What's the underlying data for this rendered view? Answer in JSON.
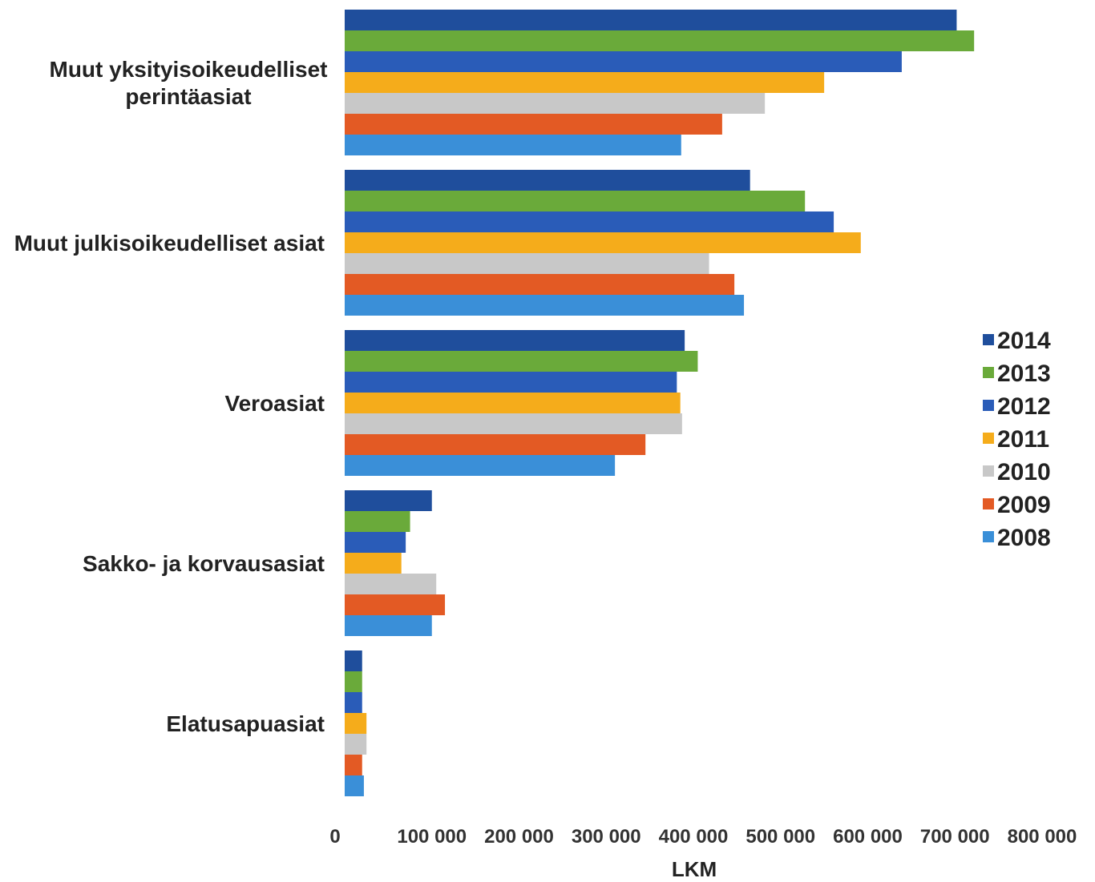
{
  "chart_data": {
    "type": "bar",
    "orientation": "horizontal",
    "categories": [
      [
        "Muut yksityisoikeudelliset",
        "perintäasiat"
      ],
      [
        "Muut julkisoikeudelliset asiat"
      ],
      [
        "Veroasiat"
      ],
      [
        "Sakko- ja korvausasiat"
      ],
      [
        "Elatusapuasiat"
      ]
    ],
    "series": [
      {
        "name": "2014",
        "color": "#1f4e9c",
        "values": [
          702000,
          465000,
          390000,
          100000,
          20000
        ]
      },
      {
        "name": "2013",
        "color": "#6aaa3a",
        "values": [
          722000,
          528000,
          405000,
          75000,
          20000
        ]
      },
      {
        "name": "2012",
        "color": "#2a5cb8",
        "values": [
          639000,
          561000,
          381000,
          70000,
          20000
        ]
      },
      {
        "name": "2011",
        "color": "#f5ac1b",
        "values": [
          550000,
          592000,
          385000,
          65000,
          25000
        ]
      },
      {
        "name": "2010",
        "color": "#c8c8c8",
        "values": [
          482000,
          418000,
          387000,
          105000,
          25000
        ]
      },
      {
        "name": "2009",
        "color": "#e35a24",
        "values": [
          433000,
          447000,
          345000,
          115000,
          20000
        ]
      },
      {
        "name": "2008",
        "color": "#3a8fd8",
        "values": [
          386000,
          458000,
          310000,
          100000,
          22000
        ]
      }
    ],
    "xlabel": "LKM",
    "xlim": [
      0,
      800000
    ],
    "xticks": [
      {
        "value": 0,
        "label": "0"
      },
      {
        "value": 100000,
        "label": "100 000"
      },
      {
        "value": 200000,
        "label": "200 000"
      },
      {
        "value": 300000,
        "label": "300 000"
      },
      {
        "value": 400000,
        "label": "400 000"
      },
      {
        "value": 500000,
        "label": "500 000"
      },
      {
        "value": 600000,
        "label": "600 000"
      },
      {
        "value": 700000,
        "label": "700 000"
      },
      {
        "value": 800000,
        "label": "800 000"
      }
    ],
    "legend_order": [
      "2014",
      "2013",
      "2012",
      "2011",
      "2010",
      "2009",
      "2008"
    ],
    "legend_position": "right",
    "grid": false
  }
}
